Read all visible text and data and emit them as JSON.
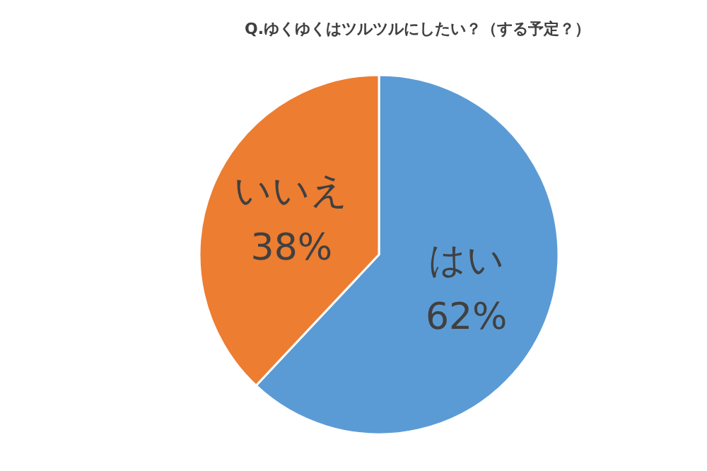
{
  "chart_data": {
    "type": "pie",
    "title": "Q.ゆくゆくはツルツルにしたい？（する予定？）",
    "categories": [
      "はい",
      "いいえ"
    ],
    "values": [
      62,
      38
    ],
    "value_labels": [
      "62%",
      "38%"
    ],
    "colors": [
      "#5b9bd5",
      "#ed7d31"
    ],
    "legend": false
  }
}
